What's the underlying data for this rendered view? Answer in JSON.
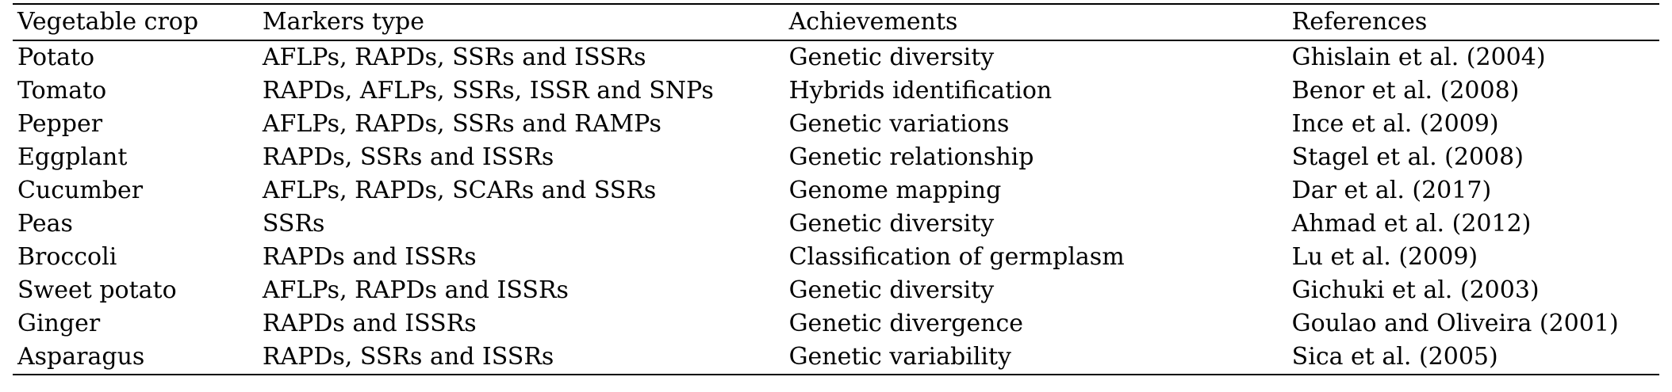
{
  "table": {
    "headers": [
      "Vegetable crop",
      "Markers type",
      "Achievements",
      "References"
    ],
    "rows": [
      [
        "Potato",
        "AFLPs, RAPDs, SSRs and ISSRs",
        "Genetic diversity",
        "Ghislain et al. (2004)"
      ],
      [
        "Tomato",
        "RAPDs, AFLPs, SSRs, ISSR and SNPs",
        "Hybrids identification",
        "Benor et al. (2008)"
      ],
      [
        "Pepper",
        "AFLPs, RAPDs, SSRs and RAMPs",
        "Genetic variations",
        "Ince et al. (2009)"
      ],
      [
        "Eggplant",
        "RAPDs, SSRs and ISSRs",
        "Genetic relationship",
        "Stagel et al. (2008)"
      ],
      [
        "Cucumber",
        "AFLPs, RAPDs, SCARs and SSRs",
        "Genome mapping",
        "Dar et al. (2017)"
      ],
      [
        "Peas",
        "SSRs",
        "Genetic diversity",
        "Ahmad et al. (2012)"
      ],
      [
        "Broccoli",
        "RAPDs and ISSRs",
        "Classification of germplasm",
        "Lu et al. (2009)"
      ],
      [
        "Sweet potato",
        "AFLPs, RAPDs and ISSRs",
        "Genetic diversity",
        "Gichuki et al. (2003)"
      ],
      [
        "Ginger",
        "RAPDs and ISSRs",
        "Genetic divergence",
        "Goulao and Oliveira (2001)"
      ],
      [
        "Asparagus",
        "RAPDs, SSRs and ISSRs",
        "Genetic variability",
        "Sica et al. (2005)"
      ]
    ]
  }
}
